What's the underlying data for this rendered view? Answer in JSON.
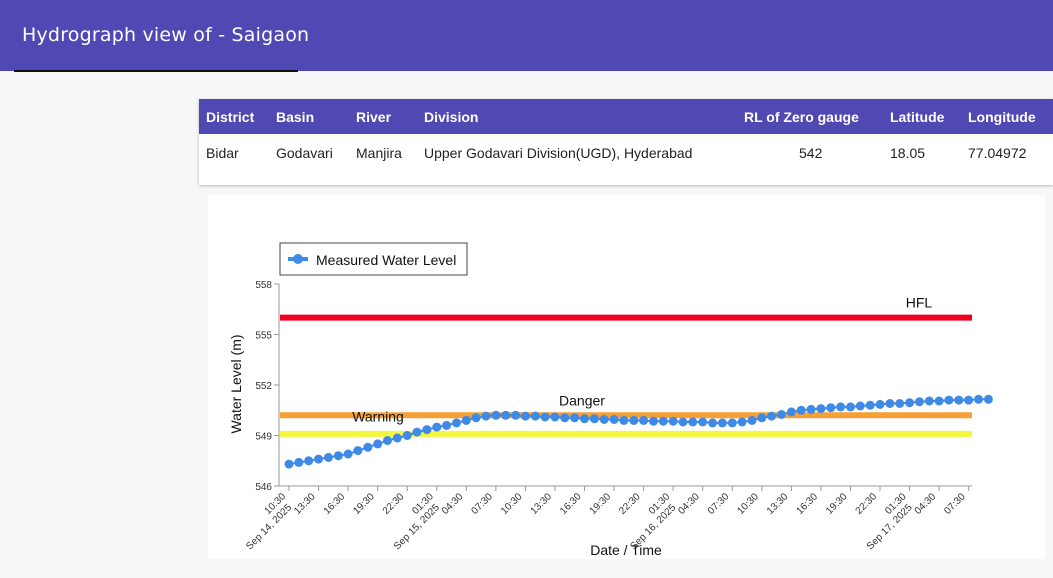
{
  "header": {
    "title": "Hydrograph view of - Saigaon"
  },
  "station_table": {
    "columns": [
      "District",
      "Basin",
      "River",
      "Division",
      "RL of Zero gauge",
      "Latitude",
      "Longitude"
    ],
    "row": [
      "Bidar",
      "Godavari",
      "Manjira",
      "Upper Godavari Division(UGD), Hyderabad",
      "542",
      "18.05",
      "77.04972"
    ]
  },
  "colors": {
    "accent": "#5149b3",
    "series": "#3f8ae6",
    "hfl": "#f0001c",
    "danger": "#f7a035",
    "warning": "#f4f740"
  },
  "chart_data": {
    "type": "line",
    "title": "",
    "xlabel": "Date / Time",
    "ylabel": "Water Level (m)",
    "ylim": [
      546,
      558
    ],
    "yticks": [
      546,
      549,
      552,
      555,
      558
    ],
    "legend": "Measured Water Level",
    "x_ticks": [
      {
        "time": "10:30",
        "date": "Sep 14, 2025"
      },
      {
        "time": "13:30",
        "date": ""
      },
      {
        "time": "16:30",
        "date": ""
      },
      {
        "time": "19:30",
        "date": ""
      },
      {
        "time": "22:30",
        "date": ""
      },
      {
        "time": "01:30",
        "date": "Sep 15, 2025"
      },
      {
        "time": "04:30",
        "date": ""
      },
      {
        "time": "07:30",
        "date": ""
      },
      {
        "time": "10:30",
        "date": ""
      },
      {
        "time": "13:30",
        "date": ""
      },
      {
        "time": "16:30",
        "date": ""
      },
      {
        "time": "19:30",
        "date": ""
      },
      {
        "time": "22:30",
        "date": ""
      },
      {
        "time": "01:30",
        "date": "Sep 16, 2025"
      },
      {
        "time": "04:30",
        "date": ""
      },
      {
        "time": "07:30",
        "date": ""
      },
      {
        "time": "10:30",
        "date": ""
      },
      {
        "time": "13:30",
        "date": ""
      },
      {
        "time": "16:30",
        "date": ""
      },
      {
        "time": "19:30",
        "date": ""
      },
      {
        "time": "22:30",
        "date": ""
      },
      {
        "time": "01:30",
        "date": "Sep 17, 2025"
      },
      {
        "time": "04:30",
        "date": ""
      },
      {
        "time": "07:30",
        "date": ""
      }
    ],
    "reference_lines": [
      {
        "name": "HFL",
        "value": 556.0,
        "color": "#f0001c"
      },
      {
        "name": "Danger",
        "value": 550.2,
        "color": "#f7a035"
      },
      {
        "name": "Warning",
        "value": 549.1,
        "color": "#f4f740"
      }
    ],
    "series": [
      {
        "name": "Measured Water Level",
        "start_hour": 10.5,
        "step_hours": 1,
        "values": [
          547.3,
          547.4,
          547.5,
          547.6,
          547.7,
          547.8,
          547.9,
          548.1,
          548.3,
          548.5,
          548.7,
          548.85,
          549.0,
          549.2,
          549.35,
          549.5,
          549.6,
          549.75,
          549.9,
          550.05,
          550.15,
          550.2,
          550.2,
          550.2,
          550.15,
          550.15,
          550.1,
          550.1,
          550.05,
          550.05,
          550.0,
          550.0,
          549.95,
          549.95,
          549.9,
          549.9,
          549.9,
          549.85,
          549.85,
          549.85,
          549.8,
          549.8,
          549.8,
          549.75,
          549.75,
          549.75,
          549.8,
          549.9,
          550.05,
          550.15,
          550.25,
          550.4,
          550.5,
          550.55,
          550.6,
          550.65,
          550.7,
          550.7,
          550.75,
          550.8,
          550.85,
          550.9,
          550.9,
          550.95,
          551.0,
          551.05,
          551.05,
          551.1,
          551.1,
          551.1,
          551.15,
          551.15
        ]
      }
    ]
  }
}
